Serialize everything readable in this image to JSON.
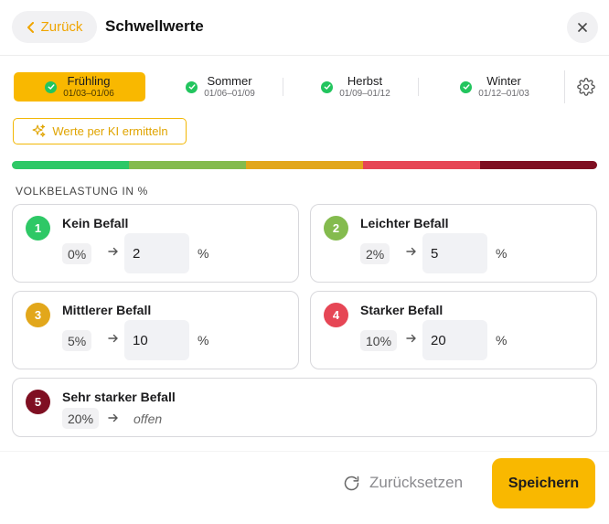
{
  "header": {
    "back_label": "Zurück",
    "title": "Schwellwerte",
    "back_icon": "chevron-left-icon",
    "close_icon": "close-icon"
  },
  "seasons": [
    {
      "name": "Frühling",
      "range": "01/03–01/06",
      "active": true,
      "done": true
    },
    {
      "name": "Sommer",
      "range": "01/06–01/09",
      "active": false,
      "done": true
    },
    {
      "name": "Herbst",
      "range": "01/09–01/12",
      "active": false,
      "done": true
    },
    {
      "name": "Winter",
      "range": "01/12–01/03",
      "active": false,
      "done": true
    }
  ],
  "settings_icon": "gear-icon",
  "ai_button": {
    "label": "Werte per KI ermitteln",
    "icon": "sparkles-icon"
  },
  "scale_colors": [
    "#2ec866",
    "#84bb4e",
    "#e2a71b",
    "#e64655",
    "#7f0f22"
  ],
  "section_label": "VOLKBELASTUNG IN %",
  "levels": [
    {
      "number": "1",
      "name": "Kein Befall",
      "from": "0%",
      "to": "2",
      "unit": "%",
      "color": "#2ec866"
    },
    {
      "number": "2",
      "name": "Leichter Befall",
      "from": "2%",
      "to": "5",
      "unit": "%",
      "color": "#84bb4e"
    },
    {
      "number": "3",
      "name": "Mittlerer Befall",
      "from": "5%",
      "to": "10",
      "unit": "%",
      "color": "#e2a71b"
    },
    {
      "number": "4",
      "name": "Starker Befall",
      "from": "10%",
      "to": "20",
      "unit": "%",
      "color": "#e64655"
    },
    {
      "number": "5",
      "name": "Sehr starker Befall",
      "from": "20%",
      "to_text": "offen",
      "color": "#7f0f22"
    }
  ],
  "footer": {
    "reset_label": "Zurücksetzen",
    "reset_icon": "refresh-icon",
    "save_label": "Speichern"
  }
}
